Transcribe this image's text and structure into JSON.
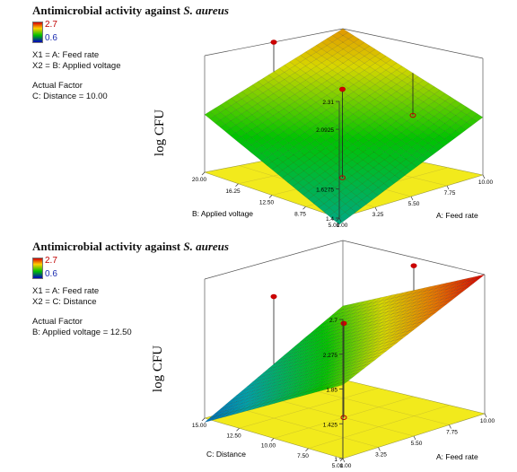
{
  "chart_data": [
    {
      "type": "surface3d",
      "title_text": "Antimicrobial activity against ",
      "title_italic": "S. aureus",
      "legend": {
        "max": "2.7",
        "min": "0.6"
      },
      "factor_lines": [
        "X1 = A: Feed rate",
        "X2 = B: Applied voltage"
      ],
      "actual_factor_heading": "Actual Factor",
      "actual_factor_value": "C: Distance = 10.00",
      "zlabel": "log CFU",
      "xlabel": "A: Feed rate",
      "ylabel": "B: Applied voltage",
      "z_ticks": [
        "1.4",
        "1.6275",
        "2.0925",
        "2.31"
      ],
      "x_ticks": [
        "1.00",
        "3.25",
        "5.50",
        "7.75",
        "10.00"
      ],
      "y_ticks": [
        "5.00",
        "8.75",
        "12.50",
        "16.25",
        "20.00"
      ],
      "zlim": [
        1.4,
        2.31
      ],
      "xlim": [
        1.0,
        10.0
      ],
      "ylim": [
        5.0,
        20.0
      ],
      "surface_corners": {
        "a_low_b_low": 1.35,
        "a_high_b_low": 1.85,
        "a_low_b_high": 1.85,
        "a_high_b_high": 2.31
      },
      "points": [
        {
          "a": 5.5,
          "b": 20.0,
          "z": 2.31
        },
        {
          "a": 5.5,
          "b": 12.5,
          "z": 2.09
        },
        {
          "a": 10.0,
          "b": 12.5,
          "z": 1.75
        },
        {
          "a": 5.5,
          "b": 12.5,
          "z": 1.4
        }
      ]
    },
    {
      "type": "surface3d",
      "title_text": "Antimicrobial activity against ",
      "title_italic": "S. aureus",
      "legend": {
        "max": "2.7",
        "min": "0.6"
      },
      "factor_lines": [
        "X1 = A: Feed rate",
        "X2 = C: Distance"
      ],
      "actual_factor_heading": "Actual Factor",
      "actual_factor_value": "B: Applied voltage = 12.50",
      "zlabel": "log CFU",
      "xlabel": "A: Feed rate",
      "ylabel": "C: Distance",
      "z_ticks": [
        "1",
        "1.425",
        "1.85",
        "2.275",
        "2.7"
      ],
      "x_ticks": [
        "1.00",
        "3.25",
        "5.50",
        "7.75",
        "10.00"
      ],
      "y_ticks": [
        "5.00",
        "7.50",
        "10.00",
        "12.50",
        "15.00"
      ],
      "zlim": [
        1.0,
        2.7
      ],
      "xlim": [
        1.0,
        10.0
      ],
      "ylim": [
        5.0,
        15.0
      ],
      "surface_corners": {
        "a_low_c_low": 1.9,
        "a_high_c_low": 2.7,
        "a_low_c_high": 0.95,
        "a_high_c_high": 1.9
      },
      "points": [
        {
          "a": 5.5,
          "c": 15.0,
          "z": 2.25
        },
        {
          "a": 5.5,
          "c": 10.0,
          "z": 2.15
        },
        {
          "a": 10.0,
          "c": 10.0,
          "z": 2.6
        },
        {
          "a": 5.5,
          "c": 10.0,
          "z": 1.0
        }
      ]
    }
  ]
}
